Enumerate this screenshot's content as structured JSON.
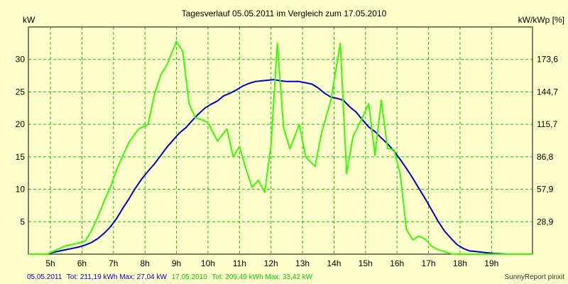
{
  "chart_data": {
    "type": "line",
    "title": "Tagesverlauf 05.05.2011 im Vergleich zum 17.05.2010",
    "ylabel_left": "kW",
    "ylabel_right": "kW/kWp [%]",
    "ylim": [
      0,
      35
    ],
    "y_ticks": [
      "5",
      "10",
      "15",
      "20",
      "25",
      "30"
    ],
    "y_right_ticks": [
      "28,9",
      "57,9",
      "86,8",
      "115,7",
      "144,7",
      "173,6"
    ],
    "xlim": [
      4.3,
      20.3
    ],
    "x_ticks": [
      "5h",
      "6h",
      "7h",
      "8h",
      "9h",
      "10h",
      "11h",
      "12h",
      "13h",
      "14h",
      "15h",
      "16h",
      "17h",
      "18h",
      "19h"
    ],
    "grid": true,
    "series": [
      {
        "name": "05.05.2011",
        "color": "#0000cc",
        "x": [
          4.3,
          4.9,
          5.1,
          5.3,
          5.5,
          5.7,
          5.9,
          6.1,
          6.3,
          6.5,
          6.7,
          6.9,
          7.1,
          7.3,
          7.5,
          7.7,
          7.9,
          8.1,
          8.3,
          8.5,
          8.7,
          8.9,
          9.1,
          9.3,
          9.5,
          9.7,
          9.9,
          10.1,
          10.3,
          10.5,
          10.7,
          10.9,
          11.1,
          11.3,
          11.5,
          11.7,
          11.9,
          12.1,
          12.3,
          12.5,
          12.7,
          12.9,
          13.1,
          13.3,
          13.5,
          13.7,
          13.9,
          14.1,
          14.3,
          14.5,
          14.7,
          14.9,
          15.1,
          15.3,
          15.5,
          15.7,
          15.9,
          16.1,
          16.3,
          16.5,
          16.7,
          16.9,
          17.1,
          17.3,
          17.5,
          17.7,
          17.9,
          18.1,
          18.3,
          18.5,
          18.7,
          18.9,
          19.1,
          19.3,
          19.5,
          19.7,
          19.9,
          20.3
        ],
        "y": [
          0,
          0,
          0.3,
          0.5,
          0.7,
          0.9,
          1.1,
          1.4,
          1.8,
          2.4,
          3.2,
          4.2,
          5.5,
          7.1,
          8.6,
          10.2,
          11.6,
          12.8,
          13.9,
          15.2,
          16.5,
          17.6,
          18.7,
          19.5,
          20.6,
          21.6,
          22.5,
          23.1,
          23.6,
          24.4,
          24.8,
          25.3,
          25.9,
          26.3,
          26.6,
          26.7,
          26.8,
          26.9,
          26.7,
          26.6,
          26.6,
          26.6,
          26.4,
          26.2,
          25.6,
          24.8,
          24.2,
          24.0,
          23.7,
          22.7,
          21.9,
          20.7,
          19.6,
          18.9,
          17.9,
          17.0,
          15.9,
          14.6,
          13.2,
          11.7,
          10.1,
          8.5,
          6.8,
          5.1,
          3.6,
          2.5,
          1.5,
          0.9,
          0.5,
          0.4,
          0.3,
          0.2,
          0.1,
          0.05,
          0,
          0,
          0,
          0
        ]
      },
      {
        "name": "17.05.2010",
        "color": "#33ff00",
        "x": [
          4.3,
          4.9,
          5.2,
          5.5,
          5.8,
          6.1,
          6.3,
          6.5,
          6.7,
          6.9,
          7.1,
          7.3,
          7.5,
          7.8,
          8.1,
          8.3,
          8.5,
          8.7,
          9.0,
          9.2,
          9.4,
          9.6,
          9.8,
          10.0,
          10.3,
          10.6,
          10.8,
          11.0,
          11.2,
          11.4,
          11.6,
          11.8,
          12.0,
          12.2,
          12.4,
          12.6,
          12.9,
          13.1,
          13.4,
          13.6,
          13.9,
          14.2,
          14.4,
          14.6,
          14.9,
          15.1,
          15.3,
          15.5,
          15.7,
          15.9,
          16.1,
          16.3,
          16.5,
          16.7,
          16.9,
          17.1,
          17.3,
          17.5,
          17.7,
          17.9,
          18.1,
          18.3,
          18.6,
          18.9,
          19.2,
          19.5,
          19.8,
          20.3
        ],
        "y": [
          0,
          0,
          0.7,
          1.3,
          1.6,
          2.0,
          3.6,
          5.7,
          8.1,
          10.3,
          13.0,
          15.2,
          17.3,
          19.3,
          20.0,
          24.6,
          27.6,
          29.2,
          32.8,
          31.2,
          23.2,
          21.0,
          20.7,
          20.3,
          17.4,
          19.3,
          15.0,
          16.6,
          13.2,
          10.3,
          11.4,
          9.5,
          16.8,
          32.5,
          19.5,
          16.2,
          20.0,
          15.0,
          13.5,
          18.6,
          23.7,
          32.5,
          12.4,
          18.1,
          21.0,
          23.2,
          15.2,
          23.7,
          16.3,
          16.1,
          12.4,
          3.8,
          2.2,
          2.8,
          2.3,
          1.2,
          0.7,
          0.4,
          0.1,
          0,
          0,
          0,
          0,
          0,
          0,
          0,
          0,
          0
        ]
      }
    ]
  },
  "legend": {
    "s1_name": "05.05.2011",
    "s1_stats": "Tot: 211,19 kWh Max: 27,04 kW",
    "s2_name": "17.05.2010",
    "s2_stats": "Tot: 209,49 kWh Max: 33,42 kW"
  },
  "footer": {
    "brand": "SunnyReport pinxit"
  },
  "colors": {
    "background": "#ffffcc",
    "grid": "#00cc00",
    "series1": "#0000cc",
    "series2": "#33ff00"
  }
}
